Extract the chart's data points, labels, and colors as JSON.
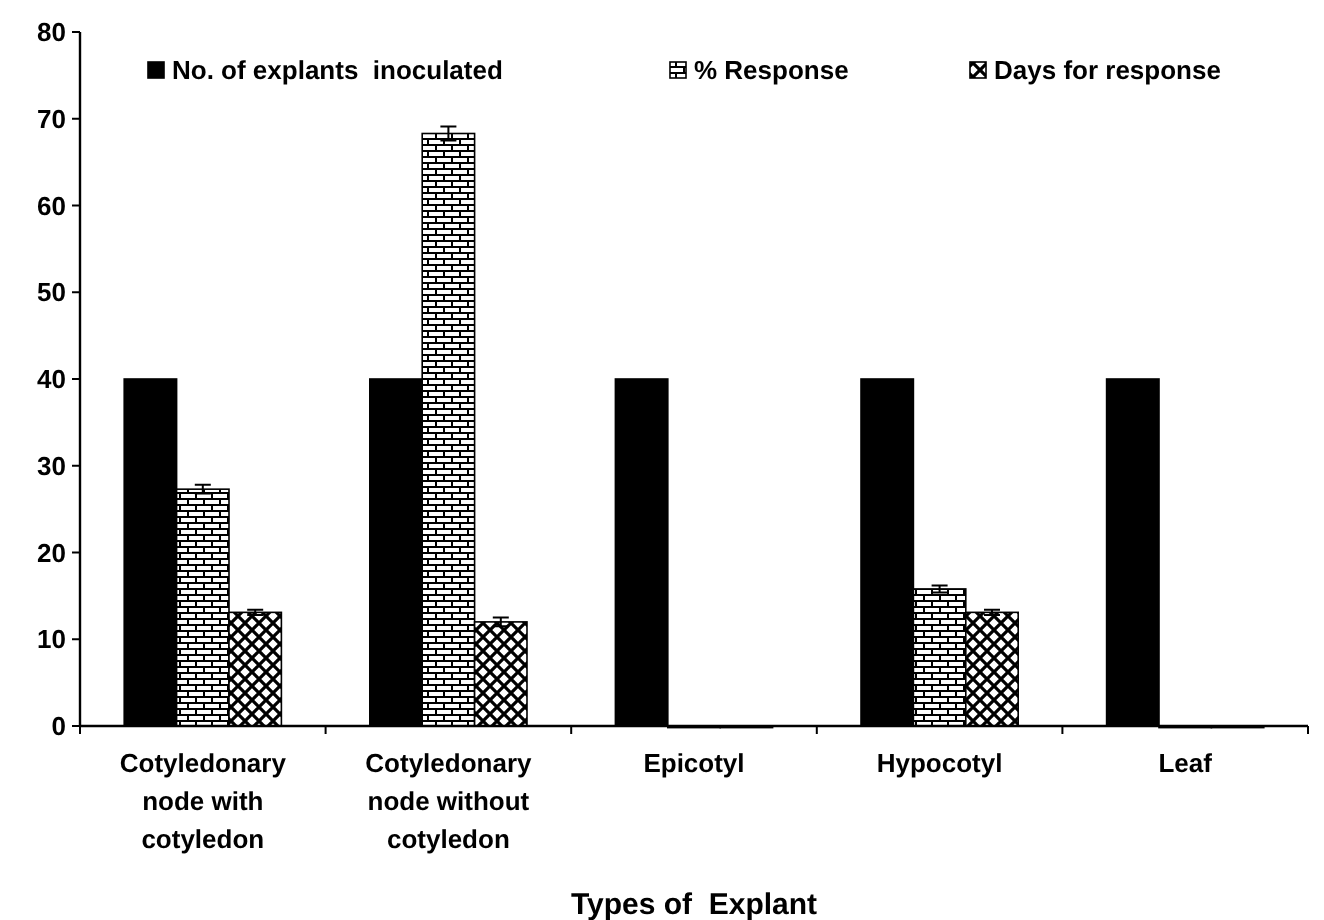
{
  "chart_data": {
    "type": "bar",
    "xlabel": "Types of  Explant",
    "categories": [
      "Cotyledonary node with cotyledon",
      "Cotyledonary node without cotyledon",
      "Epicotyl",
      "Hypocotyl",
      "Leaf"
    ],
    "series": [
      {
        "name": "No. of explants  inoculated",
        "color": "#000000",
        "values": [
          40,
          40,
          40,
          40,
          40
        ]
      },
      {
        "name": "% Response",
        "color": "#000000",
        "values": [
          27.3,
          68.3,
          0,
          15.8,
          0
        ],
        "errors": [
          0.5,
          0.8,
          null,
          0.4,
          null
        ]
      },
      {
        "name": "Days for response",
        "color": "#000000",
        "values": [
          13.1,
          12.0,
          0,
          13.1,
          0
        ],
        "errors": [
          0.3,
          0.5,
          null,
          0.3,
          null
        ]
      }
    ],
    "ylim": [
      0,
      80
    ],
    "yticks": [
      0,
      10,
      20,
      30,
      40,
      50,
      60,
      70,
      80
    ],
    "grid": false,
    "legend": "top"
  }
}
